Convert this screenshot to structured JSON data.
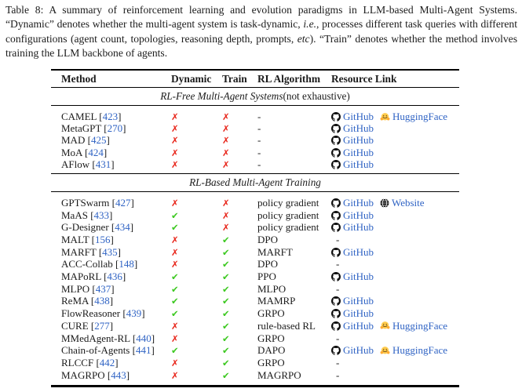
{
  "colors": {
    "link": "#2f63c4",
    "check": "#3dc921",
    "cross": "#e8251a",
    "text": "#1b1b1b"
  },
  "glyphs": {
    "check": "✔",
    "cross": "✗",
    "bracket_open": "[",
    "bracket_close": "]"
  },
  "caption": {
    "segments": [
      {
        "t": "Table 8: A summary of reinforcement learning and evolution paradigms in LLM-based Multi-Agent Systems. “Dynamic” denotes whether the multi-agent system is task-dynamic, ",
        "i": false
      },
      {
        "t": "i.e.",
        "i": true
      },
      {
        "t": ", processes different task queries with different configurations (agent count, topologies, reasoning depth, prompts, ",
        "i": false
      },
      {
        "t": "etc",
        "i": true
      },
      {
        "t": "). “Train” denotes whether the method involves training the LLM backbone of agents.",
        "i": false
      }
    ]
  },
  "table": {
    "columns": [
      "Method",
      "Dynamic",
      "Train",
      "RL Algorithm",
      "Resource Link"
    ],
    "sections": [
      {
        "title_italic": "RL-Free Multi-Agent Systems",
        "title_rest": " (not exhaustive)",
        "rows": [
          {
            "method": "CAMEL",
            "ref": "423",
            "dynamic": false,
            "train": false,
            "algorithm": "-",
            "links": [
              {
                "icon": "github",
                "label": "GitHub"
              },
              {
                "icon": "huggingface",
                "label": "HuggingFace"
              }
            ]
          },
          {
            "method": "MetaGPT",
            "ref": "270",
            "dynamic": false,
            "train": false,
            "algorithm": "-",
            "links": [
              {
                "icon": "github",
                "label": "GitHub"
              }
            ]
          },
          {
            "method": "MAD",
            "ref": "425",
            "dynamic": false,
            "train": false,
            "algorithm": "-",
            "links": [
              {
                "icon": "github",
                "label": "GitHub"
              }
            ]
          },
          {
            "method": "MoA",
            "ref": "424",
            "dynamic": false,
            "train": false,
            "algorithm": "-",
            "links": [
              {
                "icon": "github",
                "label": "GitHub"
              }
            ]
          },
          {
            "method": "AFlow",
            "ref": "431",
            "dynamic": false,
            "train": false,
            "algorithm": "-",
            "links": [
              {
                "icon": "github",
                "label": "GitHub"
              }
            ]
          }
        ]
      },
      {
        "title_italic": "RL-Based Multi-Agent Training",
        "title_rest": "",
        "rows": [
          {
            "method": "GPTSwarm",
            "ref": "427",
            "dynamic": false,
            "train": false,
            "algorithm": "policy gradient",
            "links": [
              {
                "icon": "github",
                "label": "GitHub"
              },
              {
                "icon": "globe",
                "label": "Website"
              }
            ]
          },
          {
            "method": "MaAS",
            "ref": "433",
            "dynamic": true,
            "train": false,
            "algorithm": "policy gradient",
            "links": [
              {
                "icon": "github",
                "label": "GitHub"
              }
            ]
          },
          {
            "method": "G-Designer",
            "ref": "434",
            "dynamic": true,
            "train": false,
            "algorithm": "policy gradient",
            "links": [
              {
                "icon": "github",
                "label": "GitHub"
              }
            ]
          },
          {
            "method": "MALT",
            "ref": "156",
            "dynamic": false,
            "train": true,
            "algorithm": "DPO",
            "links": [
              {
                "icon": "none",
                "label": "-"
              }
            ]
          },
          {
            "method": "MARFT",
            "ref": "435",
            "dynamic": false,
            "train": true,
            "algorithm": "MARFT",
            "links": [
              {
                "icon": "github",
                "label": "GitHub"
              }
            ]
          },
          {
            "method": "ACC-Collab",
            "ref": "148",
            "dynamic": false,
            "train": true,
            "algorithm": "DPO",
            "links": [
              {
                "icon": "none",
                "label": "-"
              }
            ]
          },
          {
            "method": "MAPoRL",
            "ref": "436",
            "dynamic": true,
            "train": true,
            "algorithm": "PPO",
            "links": [
              {
                "icon": "github",
                "label": "GitHub"
              }
            ]
          },
          {
            "method": "MLPO",
            "ref": "437",
            "dynamic": true,
            "train": true,
            "algorithm": "MLPO",
            "links": [
              {
                "icon": "none",
                "label": "-"
              }
            ]
          },
          {
            "method": "ReMA",
            "ref": "438",
            "dynamic": true,
            "train": true,
            "algorithm": "MAMRP",
            "links": [
              {
                "icon": "github",
                "label": "GitHub"
              }
            ]
          },
          {
            "method": "FlowReasoner",
            "ref": "439",
            "dynamic": true,
            "train": true,
            "algorithm": "GRPO",
            "links": [
              {
                "icon": "github",
                "label": "GitHub"
              }
            ]
          },
          {
            "method": "CURE",
            "ref": "277",
            "dynamic": false,
            "train": true,
            "algorithm": "rule-based RL",
            "links": [
              {
                "icon": "github",
                "label": "GitHub"
              },
              {
                "icon": "huggingface",
                "label": "HuggingFace"
              }
            ]
          },
          {
            "method": "MMedAgent-RL",
            "ref": "440",
            "dynamic": false,
            "train": true,
            "algorithm": "GRPO",
            "links": [
              {
                "icon": "none",
                "label": "-"
              }
            ]
          },
          {
            "method": "Chain-of-Agents",
            "ref": "441",
            "dynamic": true,
            "train": true,
            "algorithm": "DAPO",
            "links": [
              {
                "icon": "github",
                "label": "GitHub"
              },
              {
                "icon": "huggingface",
                "label": "HuggingFace"
              }
            ]
          },
          {
            "method": "RLCCF",
            "ref": "442",
            "dynamic": false,
            "train": true,
            "algorithm": "GRPO",
            "links": [
              {
                "icon": "none",
                "label": "-"
              }
            ]
          },
          {
            "method": "MAGRPO",
            "ref": "443",
            "dynamic": false,
            "train": true,
            "algorithm": "MAGRPO",
            "links": [
              {
                "icon": "none",
                "label": "-"
              }
            ]
          }
        ]
      }
    ]
  }
}
